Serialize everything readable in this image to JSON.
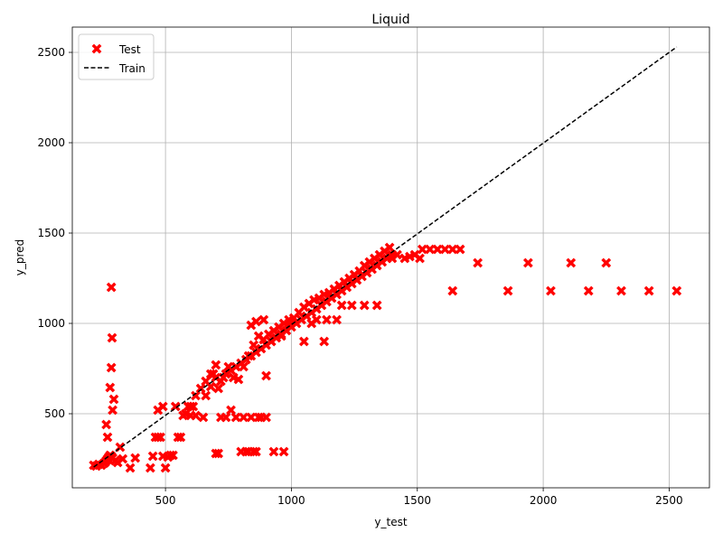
{
  "chart_data": {
    "type": "scatter",
    "title": "Liquid",
    "xlabel": "y_test",
    "ylabel": "y_pred",
    "xlim": [
      130,
      2660
    ],
    "ylim": [
      90,
      2640
    ],
    "xticks": [
      500,
      1000,
      1500,
      2000,
      2500
    ],
    "yticks": [
      500,
      1000,
      1500,
      2000,
      2500
    ],
    "grid": true,
    "legend_position": "top-left",
    "series": [
      {
        "name": "Test",
        "kind": "scatter",
        "marker": "X",
        "color": "#ff0000",
        "points": [
          [
            215,
            215
          ],
          [
            225,
            210
          ],
          [
            235,
            220
          ],
          [
            245,
            215
          ],
          [
            255,
            225
          ],
          [
            260,
            230
          ],
          [
            265,
            240
          ],
          [
            270,
            250
          ],
          [
            275,
            260
          ],
          [
            280,
            270
          ],
          [
            285,
            265
          ],
          [
            290,
            255
          ],
          [
            300,
            240
          ],
          [
            310,
            230
          ],
          [
            320,
            315
          ],
          [
            330,
            250
          ],
          [
            360,
            200
          ],
          [
            380,
            255
          ],
          [
            440,
            200
          ],
          [
            450,
            265
          ],
          [
            460,
            370
          ],
          [
            470,
            370
          ],
          [
            480,
            370
          ],
          [
            490,
            265
          ],
          [
            500,
            200
          ],
          [
            510,
            260
          ],
          [
            470,
            520
          ],
          [
            490,
            540
          ],
          [
            520,
            270
          ],
          [
            530,
            270
          ],
          [
            540,
            540
          ],
          [
            550,
            370
          ],
          [
            560,
            370
          ],
          [
            570,
            490
          ],
          [
            580,
            500
          ],
          [
            590,
            540
          ],
          [
            600,
            490
          ],
          [
            610,
            540
          ],
          [
            620,
            490
          ],
          [
            650,
            480
          ],
          [
            700,
            280
          ],
          [
            710,
            280
          ],
          [
            720,
            480
          ],
          [
            740,
            480
          ],
          [
            760,
            520
          ],
          [
            780,
            480
          ],
          [
            800,
            290
          ],
          [
            810,
            480
          ],
          [
            820,
            290
          ],
          [
            830,
            290
          ],
          [
            840,
            480
          ],
          [
            850,
            290
          ],
          [
            860,
            290
          ],
          [
            870,
            480
          ],
          [
            880,
            480
          ],
          [
            900,
            480
          ],
          [
            930,
            290
          ],
          [
            970,
            290
          ],
          [
            270,
            370
          ],
          [
            265,
            440
          ],
          [
            280,
            645
          ],
          [
            285,
            755
          ],
          [
            288,
            920
          ],
          [
            285,
            1200
          ],
          [
            290,
            520
          ],
          [
            295,
            580
          ],
          [
            600,
            540
          ],
          [
            620,
            600
          ],
          [
            640,
            640
          ],
          [
            660,
            680
          ],
          [
            680,
            720
          ],
          [
            700,
            700
          ],
          [
            720,
            680
          ],
          [
            740,
            720
          ],
          [
            760,
            740
          ],
          [
            780,
            760
          ],
          [
            800,
            780
          ],
          [
            820,
            800
          ],
          [
            840,
            820
          ],
          [
            860,
            840
          ],
          [
            880,
            860
          ],
          [
            900,
            880
          ],
          [
            920,
            900
          ],
          [
            940,
            920
          ],
          [
            960,
            940
          ],
          [
            980,
            960
          ],
          [
            1000,
            980
          ],
          [
            1020,
            1000
          ],
          [
            1040,
            1020
          ],
          [
            1060,
            1040
          ],
          [
            1080,
            1060
          ],
          [
            1100,
            1080
          ],
          [
            1120,
            1100
          ],
          [
            1140,
            1120
          ],
          [
            1160,
            1140
          ],
          [
            1180,
            1160
          ],
          [
            1200,
            1180
          ],
          [
            1220,
            1200
          ],
          [
            1240,
            1220
          ],
          [
            1260,
            1240
          ],
          [
            1280,
            1260
          ],
          [
            1300,
            1280
          ],
          [
            1320,
            1300
          ],
          [
            1340,
            1320
          ],
          [
            1360,
            1340
          ],
          [
            1380,
            1360
          ],
          [
            1400,
            1380
          ],
          [
            660,
            600
          ],
          [
            680,
            650
          ],
          [
            690,
            720
          ],
          [
            700,
            770
          ],
          [
            710,
            640
          ],
          [
            730,
            700
          ],
          [
            750,
            760
          ],
          [
            770,
            700
          ],
          [
            790,
            690
          ],
          [
            810,
            760
          ],
          [
            830,
            820
          ],
          [
            850,
            880
          ],
          [
            870,
            930
          ],
          [
            890,
            910
          ],
          [
            910,
            940
          ],
          [
            930,
            960
          ],
          [
            950,
            980
          ],
          [
            970,
            1000
          ],
          [
            990,
            1000
          ],
          [
            1010,
            1030
          ],
          [
            1030,
            1060
          ],
          [
            1050,
            1090
          ],
          [
            1070,
            1110
          ],
          [
            1090,
            1130
          ],
          [
            1110,
            1140
          ],
          [
            1130,
            1160
          ],
          [
            1150,
            1170
          ],
          [
            1170,
            1190
          ],
          [
            1190,
            1210
          ],
          [
            1210,
            1230
          ],
          [
            1230,
            1250
          ],
          [
            1250,
            1270
          ],
          [
            1270,
            1290
          ],
          [
            1290,
            1320
          ],
          [
            1310,
            1340
          ],
          [
            1330,
            1360
          ],
          [
            1350,
            1380
          ],
          [
            1370,
            1400
          ],
          [
            1390,
            1420
          ],
          [
            840,
            990
          ],
          [
            860,
            1010
          ],
          [
            890,
            1020
          ],
          [
            900,
            710
          ],
          [
            920,
            900
          ],
          [
            960,
            930
          ],
          [
            990,
            1020
          ],
          [
            1050,
            900
          ],
          [
            1080,
            1000
          ],
          [
            1100,
            1020
          ],
          [
            1130,
            900
          ],
          [
            1140,
            1020
          ],
          [
            1180,
            1020
          ],
          [
            1200,
            1100
          ],
          [
            1240,
            1100
          ],
          [
            1290,
            1100
          ],
          [
            1340,
            1100
          ],
          [
            1400,
            1360
          ],
          [
            1420,
            1380
          ],
          [
            1450,
            1360
          ],
          [
            1470,
            1370
          ],
          [
            1490,
            1380
          ],
          [
            1510,
            1360
          ],
          [
            1520,
            1410
          ],
          [
            1550,
            1410
          ],
          [
            1580,
            1410
          ],
          [
            1610,
            1410
          ],
          [
            1640,
            1410
          ],
          [
            1670,
            1410
          ],
          [
            1640,
            1180
          ],
          [
            1740,
            1335
          ],
          [
            1860,
            1180
          ],
          [
            1940,
            1335
          ],
          [
            2030,
            1180
          ],
          [
            2110,
            1335
          ],
          [
            2180,
            1180
          ],
          [
            2250,
            1335
          ],
          [
            2310,
            1180
          ],
          [
            2420,
            1180
          ],
          [
            2530,
            1180
          ]
        ]
      },
      {
        "name": "Train",
        "kind": "line",
        "linestyle": "dashed",
        "color": "#000000",
        "x": [
          215,
          2530
        ],
        "y": [
          205,
          2530
        ]
      }
    ]
  }
}
